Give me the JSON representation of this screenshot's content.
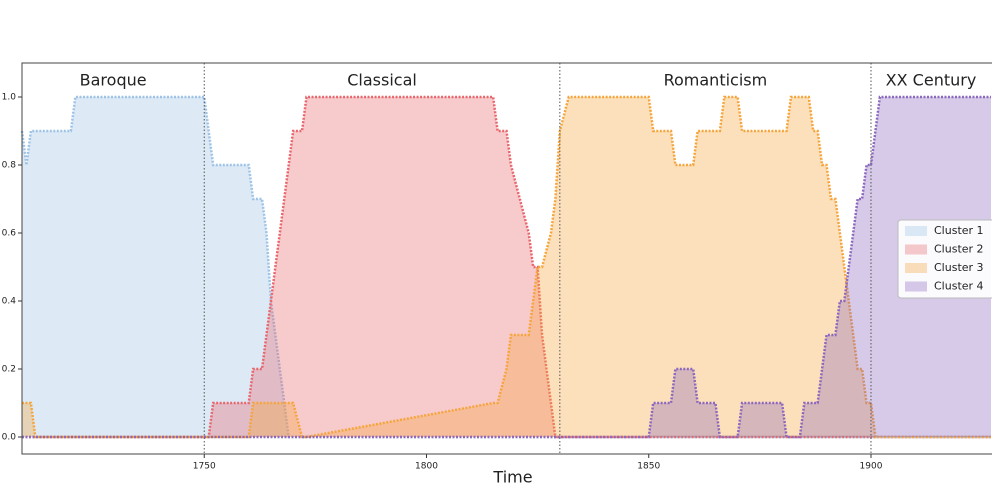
{
  "chart_data": {
    "type": "area",
    "xlabel": "Time",
    "x": [
      1709,
      1710,
      1711,
      1712,
      1720,
      1721,
      1750,
      1751,
      1752,
      1760,
      1761,
      1763,
      1764,
      1765,
      1767,
      1768,
      1769,
      1770,
      1772,
      1773,
      1815,
      1816,
      1818,
      1819,
      1821,
      1823,
      1824,
      1825,
      1826,
      1828,
      1829,
      1830,
      1832,
      1850,
      1851,
      1855,
      1856,
      1860,
      1861,
      1865,
      1866,
      1867,
      1870,
      1871,
      1872,
      1880,
      1881,
      1882,
      1884,
      1885,
      1886,
      1887,
      1888,
      1889,
      1890,
      1891,
      1892,
      1893,
      1894,
      1895,
      1896,
      1897,
      1898,
      1899,
      1900,
      1901,
      1902,
      1927
    ],
    "series": [
      {
        "name": "Cluster 1",
        "color": "#9ec3e6",
        "values": [
          0.9,
          0.8,
          0.9,
          0.9,
          0.9,
          1,
          1,
          0.9,
          0.8,
          0.8,
          0.7,
          0.7,
          0.6,
          0.4,
          0.2,
          0.1,
          0,
          0,
          0,
          0,
          0,
          0,
          0,
          0,
          0,
          0,
          0,
          0,
          0,
          0,
          0,
          0,
          0,
          0,
          0,
          0,
          0,
          0,
          0,
          0,
          0,
          0,
          0,
          0,
          0,
          0,
          0,
          0,
          0,
          0,
          0,
          0,
          0,
          0,
          0,
          0,
          0,
          0,
          0,
          0,
          0,
          0,
          0,
          0,
          0,
          0,
          0,
          0
        ]
      },
      {
        "name": "Cluster 2",
        "color": "#e8666c",
        "values": [
          0,
          0,
          0,
          0,
          0,
          0,
          0,
          0,
          0.1,
          0.1,
          0.2,
          0.2,
          0.3,
          0.4,
          0.6,
          0.7,
          0.8,
          0.9,
          0.9,
          1,
          1,
          0.9,
          0.9,
          0.8,
          0.7,
          0.6,
          0.5,
          0.5,
          0.3,
          0.1,
          0,
          0,
          0,
          0,
          0,
          0,
          0,
          0,
          0,
          0,
          0,
          0,
          0,
          0,
          0,
          0,
          0,
          0,
          0,
          0,
          0,
          0,
          0,
          0,
          0,
          0,
          0,
          0,
          0,
          0,
          0,
          0,
          0,
          0,
          0,
          0,
          0,
          0
        ]
      },
      {
        "name": "Cluster 3",
        "color": "#f5a53c",
        "values": [
          0.1,
          0.1,
          0.1,
          0,
          0,
          0,
          0,
          0,
          0,
          0,
          0.1,
          0.1,
          0.1,
          0.1,
          0.1,
          0.1,
          0.1,
          0.1,
          0,
          0,
          0.1,
          0.1,
          0.2,
          0.3,
          0.3,
          0.3,
          0.4,
          0.5,
          0.5,
          0.6,
          0.7,
          0.9,
          1,
          1,
          0.9,
          0.9,
          0.8,
          0.8,
          0.9,
          0.9,
          0.9,
          1,
          1,
          0.9,
          0.9,
          0.9,
          0.9,
          1,
          1,
          1,
          1,
          0.9,
          0.9,
          0.8,
          0.8,
          0.7,
          0.7,
          0.6,
          0.5,
          0.4,
          0.3,
          0.2,
          0.2,
          0.1,
          0.1,
          0,
          0,
          0
        ]
      },
      {
        "name": "Cluster 4",
        "color": "#8c68be",
        "values": [
          0,
          0,
          0,
          0,
          0,
          0,
          0,
          0,
          0,
          0,
          0,
          0,
          0,
          0,
          0,
          0,
          0,
          0,
          0,
          0,
          0,
          0,
          0,
          0,
          0,
          0,
          0,
          0,
          0,
          0,
          0,
          0,
          0,
          0,
          0.1,
          0.1,
          0.2,
          0.2,
          0.1,
          0.1,
          0,
          0,
          0,
          0.1,
          0.1,
          0.1,
          0,
          0,
          0,
          0.1,
          0.1,
          0.1,
          0.1,
          0.2,
          0.3,
          0.3,
          0.3,
          0.4,
          0.4,
          0.5,
          0.6,
          0.7,
          0.7,
          0.8,
          0.8,
          0.9,
          1,
          1
        ]
      }
    ],
    "periods": [
      "Baroque",
      "Classical",
      "Romanticism",
      "XX Century"
    ],
    "boundaries": [
      1750,
      1830,
      1900
    ],
    "xlim": [
      1709,
      1927
    ],
    "ylim": [
      -0.05,
      1.1
    ],
    "xticks": [
      1750,
      1800,
      1850,
      1900
    ],
    "yticks": [
      {
        "value": 0,
        "label": "0.0"
      },
      0.2,
      0.4,
      0.6,
      0.8,
      {
        "value": 1,
        "label": "1.0"
      }
    ],
    "legend": "right"
  }
}
